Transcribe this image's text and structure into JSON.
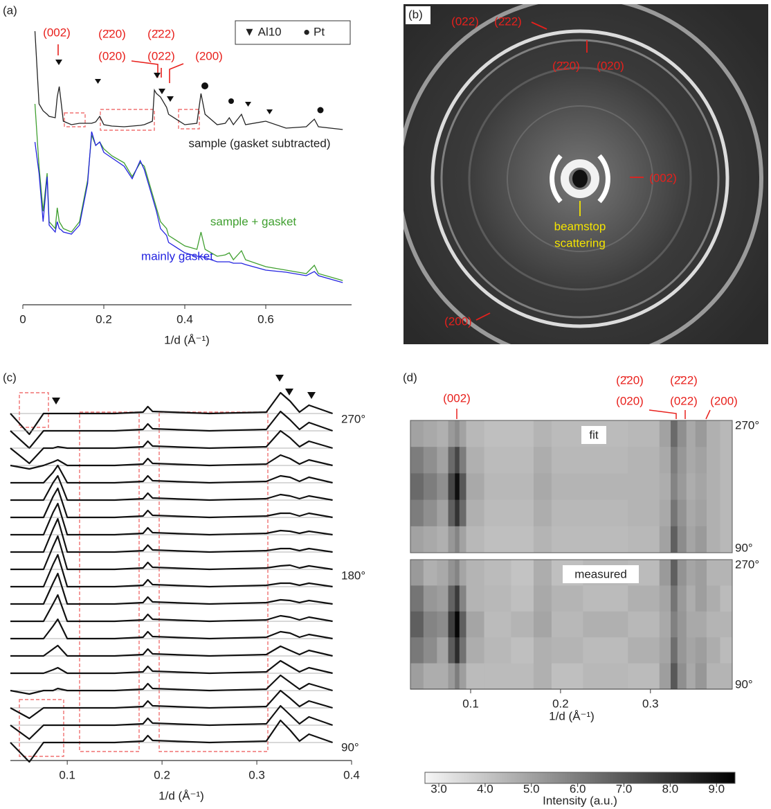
{
  "chart_data": [
    {
      "type": "line",
      "panel_label": "(a)",
      "x": [
        0.03,
        0.04,
        0.05,
        0.06,
        0.065,
        0.08,
        0.085,
        0.09,
        0.095,
        0.1,
        0.12,
        0.14,
        0.16,
        0.17,
        0.18,
        0.19,
        0.2,
        0.22,
        0.25,
        0.27,
        0.29,
        0.3,
        0.32,
        0.325,
        0.33,
        0.34,
        0.355,
        0.36,
        0.4,
        0.43,
        0.44,
        0.45,
        0.48,
        0.5,
        0.51,
        0.52,
        0.54,
        0.55,
        0.6,
        0.65,
        0.7,
        0.72,
        0.73,
        0.79
      ],
      "series": [
        {
          "name": "sample (gasket subtracted)",
          "color": "#222222",
          "values": [
            395,
            290,
            280,
            275,
            272,
            270,
            300,
            315,
            290,
            265,
            260,
            262,
            262,
            262,
            264,
            272,
            260,
            258,
            257,
            258,
            259,
            260,
            265,
            310,
            305,
            300,
            285,
            275,
            260,
            262,
            305,
            275,
            260,
            262,
            270,
            260,
            275,
            260,
            265,
            255,
            257,
            268,
            257,
            253
          ]
        },
        {
          "name": "sample + gasket",
          "color": "#3f9f2f",
          "values": [
            290,
            200,
            135,
            190,
            120,
            110,
            140,
            120,
            115,
            110,
            105,
            120,
            180,
            245,
            230,
            235,
            225,
            215,
            205,
            185,
            205,
            200,
            160,
            150,
            140,
            120,
            110,
            100,
            85,
            80,
            105,
            80,
            70,
            72,
            75,
            65,
            78,
            65,
            55,
            50,
            45,
            57,
            45,
            35
          ]
        },
        {
          "name": "mainly gasket",
          "color": "#2222e0",
          "values": [
            235,
            190,
            120,
            185,
            115,
            105,
            120,
            110,
            108,
            105,
            102,
            115,
            175,
            250,
            230,
            235,
            220,
            212,
            200,
            182,
            208,
            195,
            155,
            145,
            135,
            110,
            100,
            90,
            75,
            70,
            70,
            68,
            62,
            62,
            62,
            60,
            60,
            58,
            50,
            47,
            42,
            48,
            42,
            32
          ]
        }
      ],
      "xlim": [
        0,
        0.8
      ],
      "ylim": [
        0,
        410
      ],
      "xticks": [
        0,
        0.2,
        0.4,
        0.6
      ],
      "xlabel": "1/d (Å⁻¹)",
      "legend": [
        "▼ Al10",
        "● Pt"
      ],
      "annotations": [
        "(002)",
        "(2̄20)",
        "(020)",
        "(2̄22)",
        "(022)",
        "(200)"
      ]
    },
    {
      "type": "image",
      "panel_label": "(b)",
      "annotations": [
        "(022)",
        "(2̄22)",
        "(2̄20)",
        "(020)",
        "(002)",
        "beamstop",
        "scattering",
        "(200)"
      ]
    },
    {
      "type": "stacked-line",
      "panel_label": "(c)",
      "x": [
        0.04,
        0.06,
        0.075,
        0.085,
        0.09,
        0.1,
        0.15,
        0.18,
        0.185,
        0.19,
        0.25,
        0.31,
        0.325,
        0.335,
        0.345,
        0.355,
        0.38
      ],
      "series": [
        {
          "values": [
            0,
            -30,
            0,
            0,
            0,
            0,
            0,
            2,
            10,
            3,
            0,
            2,
            30,
            18,
            2,
            12,
            0
          ]
        },
        {
          "values": [
            0,
            -25,
            0,
            0,
            0,
            0,
            0,
            2,
            10,
            3,
            0,
            2,
            28,
            16,
            2,
            12,
            0
          ]
        },
        {
          "values": [
            0,
            -22,
            0,
            0,
            2,
            0,
            0,
            2,
            10,
            3,
            0,
            2,
            25,
            15,
            2,
            10,
            0
          ]
        },
        {
          "values": [
            0,
            -5,
            0,
            5,
            8,
            0,
            0,
            2,
            10,
            3,
            0,
            2,
            15,
            10,
            2,
            8,
            0
          ]
        },
        {
          "values": [
            0,
            0,
            0,
            15,
            25,
            0,
            0,
            2,
            10,
            3,
            0,
            2,
            10,
            8,
            2,
            8,
            0
          ]
        },
        {
          "values": [
            0,
            0,
            0,
            25,
            35,
            0,
            0,
            2,
            10,
            3,
            0,
            2,
            8,
            6,
            2,
            6,
            0
          ]
        },
        {
          "values": [
            0,
            0,
            0,
            30,
            42,
            0,
            0,
            2,
            10,
            3,
            0,
            2,
            6,
            6,
            2,
            6,
            0
          ]
        },
        {
          "values": [
            0,
            0,
            0,
            32,
            45,
            0,
            0,
            2,
            10,
            3,
            0,
            2,
            6,
            5,
            2,
            5,
            0
          ]
        },
        {
          "values": [
            0,
            0,
            0,
            33,
            48,
            0,
            0,
            2,
            10,
            3,
            0,
            2,
            5,
            5,
            2,
            5,
            0
          ]
        },
        {
          "values": [
            0,
            0,
            0,
            33,
            48,
            0,
            0,
            2,
            10,
            3,
            0,
            2,
            5,
            6,
            2,
            5,
            0
          ]
        },
        {
          "values": [
            0,
            0,
            0,
            32,
            46,
            0,
            0,
            2,
            10,
            3,
            0,
            2,
            5,
            5,
            2,
            5,
            0
          ]
        },
        {
          "values": [
            0,
            0,
            0,
            30,
            44,
            0,
            0,
            2,
            10,
            3,
            0,
            2,
            6,
            5,
            2,
            5,
            0
          ]
        },
        {
          "values": [
            0,
            0,
            0,
            25,
            38,
            0,
            0,
            2,
            10,
            3,
            0,
            2,
            8,
            6,
            2,
            6,
            0
          ]
        },
        {
          "values": [
            0,
            0,
            0,
            18,
            28,
            0,
            0,
            2,
            10,
            3,
            0,
            2,
            10,
            8,
            2,
            6,
            0
          ]
        },
        {
          "values": [
            0,
            0,
            0,
            10,
            15,
            0,
            0,
            2,
            10,
            3,
            0,
            2,
            14,
            8,
            2,
            8,
            0
          ]
        },
        {
          "values": [
            0,
            0,
            0,
            5,
            8,
            0,
            0,
            2,
            10,
            3,
            0,
            2,
            18,
            10,
            2,
            8,
            0
          ]
        },
        {
          "values": [
            0,
            -5,
            0,
            0,
            3,
            0,
            0,
            2,
            10,
            3,
            0,
            2,
            22,
            12,
            2,
            10,
            0
          ]
        },
        {
          "values": [
            0,
            -15,
            0,
            0,
            0,
            0,
            0,
            2,
            10,
            3,
            0,
            2,
            25,
            14,
            2,
            10,
            0
          ]
        },
        {
          "values": [
            0,
            -20,
            0,
            0,
            0,
            0,
            0,
            2,
            10,
            3,
            0,
            2,
            28,
            15,
            2,
            12,
            0
          ]
        },
        {
          "values": [
            0,
            -28,
            0,
            0,
            0,
            0,
            0,
            2,
            10,
            3,
            0,
            2,
            32,
            18,
            2,
            12,
            0
          ]
        }
      ],
      "xlim": [
        0.04,
        0.4
      ],
      "xticks": [
        0.1,
        0.2,
        0.3,
        0.4
      ],
      "xlabel": "1/d (Å⁻¹)",
      "row_labels": [
        "270°",
        "180°",
        "90°"
      ]
    },
    {
      "type": "heatmap",
      "panel_label": "(d)",
      "x": [
        0.04,
        0.055,
        0.07,
        0.08,
        0.085,
        0.09,
        0.1,
        0.13,
        0.16,
        0.18,
        0.2,
        0.25,
        0.3,
        0.32,
        0.325,
        0.335,
        0.345,
        0.355,
        0.37,
        0.385
      ],
      "panels": [
        {
          "name": "fit",
          "rows": [
            [
              5.0,
              4.8,
              4.6,
              5.2,
              5.6,
              5.0,
              4.4,
              4.2,
              4.2,
              4.5,
              4.3,
              4.3,
              4.4,
              5.0,
              6.5,
              5.5,
              4.8,
              5.2,
              4.6,
              4.4
            ],
            [
              6.0,
              5.5,
              5.0,
              6.5,
              7.5,
              6.0,
              4.6,
              4.3,
              4.3,
              4.7,
              4.4,
              4.4,
              4.5,
              4.8,
              6.0,
              5.3,
              4.8,
              5.0,
              4.6,
              4.4
            ],
            [
              6.5,
              6.0,
              5.5,
              7.5,
              9.0,
              7.0,
              4.8,
              4.4,
              4.4,
              4.8,
              4.5,
              4.5,
              4.5,
              4.7,
              5.8,
              5.2,
              4.7,
              4.9,
              4.6,
              4.4
            ],
            [
              6.0,
              5.5,
              5.0,
              6.8,
              8.0,
              6.5,
              4.6,
              4.3,
              4.3,
              4.7,
              4.4,
              4.4,
              4.5,
              4.8,
              6.2,
              5.4,
              4.8,
              5.0,
              4.6,
              4.4
            ],
            [
              5.0,
              4.8,
              4.6,
              5.3,
              5.8,
              5.0,
              4.4,
              4.2,
              4.2,
              4.5,
              4.3,
              4.3,
              4.4,
              5.0,
              6.8,
              5.6,
              4.9,
              5.2,
              4.6,
              4.4
            ]
          ]
        },
        {
          "name": "measured",
          "rows": [
            [
              5.2,
              4.6,
              4.8,
              5.4,
              5.8,
              4.9,
              4.5,
              4.3,
              4.1,
              4.7,
              4.2,
              4.4,
              4.3,
              5.2,
              6.8,
              5.4,
              4.9,
              5.1,
              4.5,
              4.5
            ],
            [
              6.2,
              5.3,
              5.1,
              6.7,
              7.8,
              5.8,
              4.5,
              4.4,
              4.2,
              4.8,
              4.5,
              4.3,
              4.6,
              4.9,
              6.2,
              5.2,
              4.7,
              5.1,
              4.7,
              4.3
            ],
            [
              6.8,
              5.8,
              5.6,
              7.7,
              9.2,
              6.8,
              4.9,
              4.3,
              4.5,
              4.9,
              4.4,
              4.6,
              4.4,
              4.8,
              5.9,
              5.3,
              4.8,
              4.8,
              4.5,
              4.5
            ],
            [
              6.1,
              5.6,
              4.9,
              6.9,
              8.2,
              6.3,
              4.7,
              4.4,
              4.2,
              4.6,
              4.5,
              4.3,
              4.6,
              4.9,
              6.4,
              5.3,
              4.9,
              5.1,
              4.7,
              4.3
            ],
            [
              5.1,
              4.7,
              4.7,
              5.2,
              6.0,
              5.1,
              4.3,
              4.3,
              4.3,
              4.6,
              4.2,
              4.4,
              4.3,
              5.1,
              7.0,
              5.5,
              4.8,
              5.3,
              4.5,
              4.5
            ]
          ]
        }
      ],
      "xlim": [
        0.033,
        0.391
      ],
      "xticks": [
        0.1,
        0.2,
        0.3
      ],
      "xlabel": "1/d (Å⁻¹)",
      "row_labels": [
        "270°",
        "90°"
      ],
      "clim": [
        2.7,
        9.4
      ],
      "cticks": [
        {
          "value": 3,
          "label": "3.0"
        },
        {
          "value": 4,
          "label": "4.0"
        },
        {
          "value": 5,
          "label": "5.0"
        },
        {
          "value": 6,
          "label": "6.0"
        },
        {
          "value": 7,
          "label": "7.0"
        },
        {
          "value": 8,
          "label": "8.0"
        },
        {
          "value": 9,
          "label": "9.0"
        }
      ],
      "clabel": "Intensity (a.u.)",
      "annotations": [
        "(002)",
        "(2̄20)",
        "(020)",
        "(2̄22)",
        "(022)",
        "(200)"
      ]
    }
  ]
}
